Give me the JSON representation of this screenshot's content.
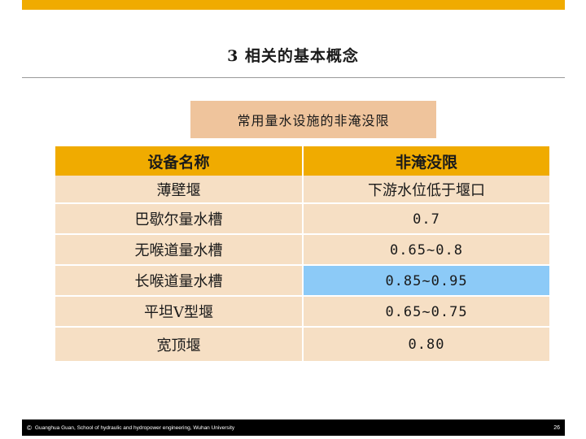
{
  "colors": {
    "accent": "#f0ab00",
    "caption_bg": "#efc49c",
    "row_bg": "#f6dfc4",
    "highlight": "#8ccaf7",
    "footer_bg": "#000000"
  },
  "slide": {
    "title": "3  相关的基本概念"
  },
  "caption": "常用量水设施的非淹没限",
  "table": {
    "headers": [
      "设备名称",
      "非淹没限"
    ],
    "rows": [
      {
        "name": "薄壁堰",
        "limit": "下游水位低于堰口",
        "highlight": false
      },
      {
        "name": "巴歇尔量水槽",
        "limit": "0.7",
        "highlight": false
      },
      {
        "name": "无喉道量水槽",
        "limit": "0.65~0.8",
        "highlight": false
      },
      {
        "name": "长喉道量水槽",
        "limit": "0.85~0.95",
        "highlight": true
      },
      {
        "name": "平坦V型堰",
        "limit": "0.65~0.75",
        "highlight": false
      },
      {
        "name": "宽顶堰",
        "limit": "0.80",
        "highlight": false
      }
    ]
  },
  "footer": {
    "copyright_symbol": "©",
    "credit": "Guanghua Guan, School of hydraulic and hydropower engineering, Wuhan University",
    "page_number": "26"
  }
}
